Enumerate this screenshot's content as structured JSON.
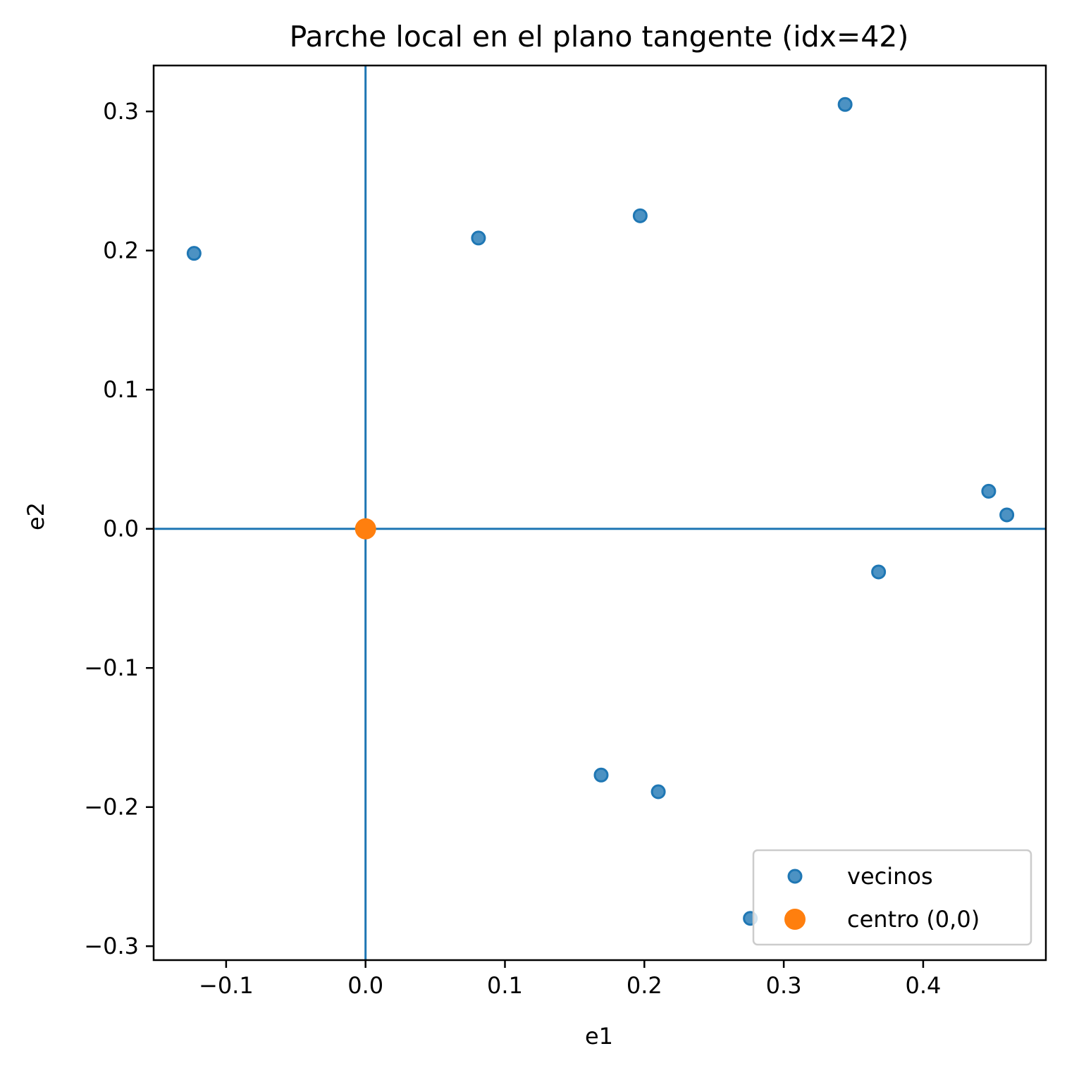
{
  "chart_data": {
    "type": "scatter",
    "title": "Parche local en el plano tangente (idx=42)",
    "xlabel": "e1",
    "ylabel": "e2",
    "xlim": [
      -0.152,
      0.488
    ],
    "ylim": [
      -0.31,
      0.333
    ],
    "xticks": [
      -0.1,
      0.0,
      0.1,
      0.2,
      0.3,
      0.4
    ],
    "xtick_labels": [
      "−0.1",
      "0.0",
      "0.1",
      "0.2",
      "0.3",
      "0.4"
    ],
    "yticks": [
      -0.3,
      -0.2,
      -0.1,
      0.0,
      0.1,
      0.2,
      0.3
    ],
    "ytick_labels": [
      "−0.3",
      "−0.2",
      "−0.1",
      "0.0",
      "0.1",
      "0.2",
      "0.3"
    ],
    "reference_lines": {
      "x": 0,
      "y": 0,
      "color": "#1f77b4"
    },
    "grid": false,
    "legend": {
      "position": "lower right"
    },
    "series": [
      {
        "name": "vecinos",
        "color": "#1f77b4",
        "alpha": 0.8,
        "points": [
          {
            "x": -0.123,
            "y": 0.198
          },
          {
            "x": 0.081,
            "y": 0.209
          },
          {
            "x": 0.197,
            "y": 0.225
          },
          {
            "x": 0.344,
            "y": 0.305
          },
          {
            "x": 0.447,
            "y": 0.027
          },
          {
            "x": 0.46,
            "y": 0.01
          },
          {
            "x": 0.368,
            "y": -0.031
          },
          {
            "x": 0.169,
            "y": -0.177
          },
          {
            "x": 0.21,
            "y": -0.189
          },
          {
            "x": 0.276,
            "y": -0.28
          }
        ]
      },
      {
        "name": "centro (0,0)",
        "color": "#ff7f0e",
        "alpha": 1,
        "points": [
          {
            "x": 0,
            "y": 0
          }
        ]
      }
    ]
  }
}
